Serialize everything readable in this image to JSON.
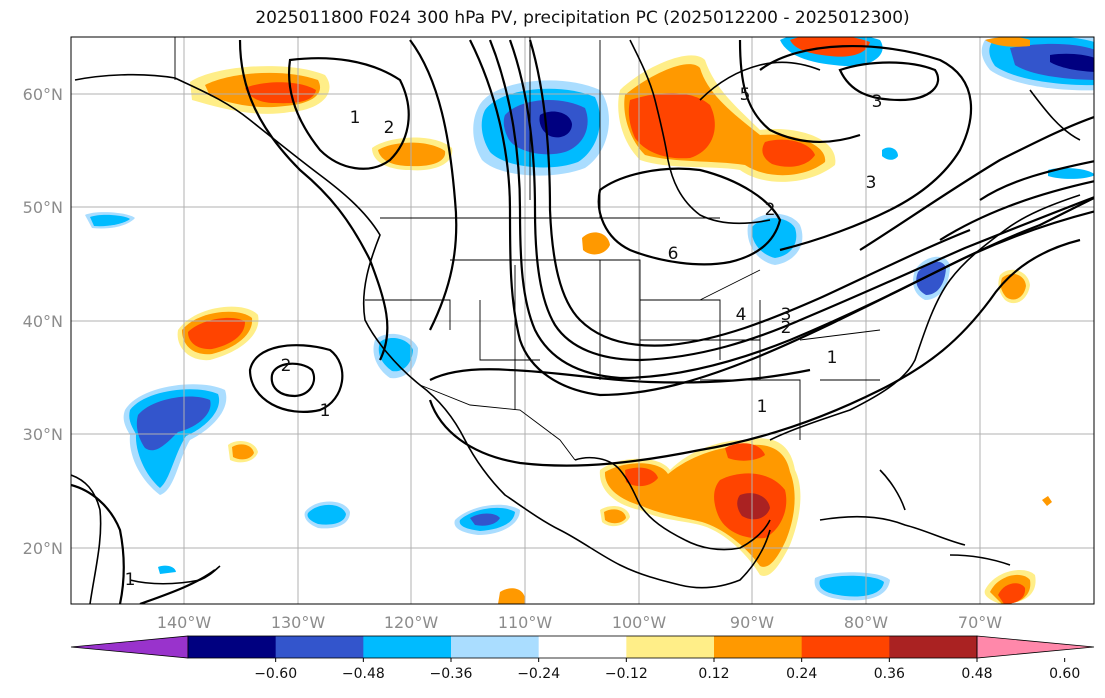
{
  "title": "2025011800 F024 300 hPa PV, precipitation PC (2025012200 - 2025012300)",
  "map": {
    "lon_range": [
      -150,
      -60
    ],
    "lat_range": [
      15,
      65
    ],
    "lat_ticks": [
      {
        "value": 60,
        "label": "60°N"
      },
      {
        "value": 50,
        "label": "50°N"
      },
      {
        "value": 40,
        "label": "40°N"
      },
      {
        "value": 30,
        "label": "30°N"
      },
      {
        "value": 20,
        "label": "20°N"
      }
    ],
    "lon_ticks": [
      {
        "value": -140,
        "label": "140°W"
      },
      {
        "value": -130,
        "label": "130°W"
      },
      {
        "value": -120,
        "label": "120°W"
      },
      {
        "value": -110,
        "label": "110°W"
      },
      {
        "value": -100,
        "label": "100°W"
      },
      {
        "value": -90,
        "label": "90°W"
      },
      {
        "value": -80,
        "label": "80°W"
      },
      {
        "value": -70,
        "label": "70°W"
      }
    ],
    "grid": true,
    "contour_labels": [
      "2",
      "1",
      "3",
      "2",
      "5",
      "3",
      "6",
      "4",
      "3",
      "2",
      "1",
      "1",
      "2",
      "1",
      "1"
    ]
  },
  "colorbar": {
    "colors": [
      "#9933cc",
      "#000080",
      "#3355cc",
      "#00bbff",
      "#aaddff",
      "#ffffff",
      "#ffee88",
      "#ff9900",
      "#ff4400",
      "#aa2222",
      "#ff88aa"
    ],
    "labels": [
      "−0.60",
      "−0.48",
      "−0.36",
      "−0.24",
      "−0.12",
      "0.12",
      "0.24",
      "0.36",
      "0.48",
      "0.60"
    ]
  }
}
